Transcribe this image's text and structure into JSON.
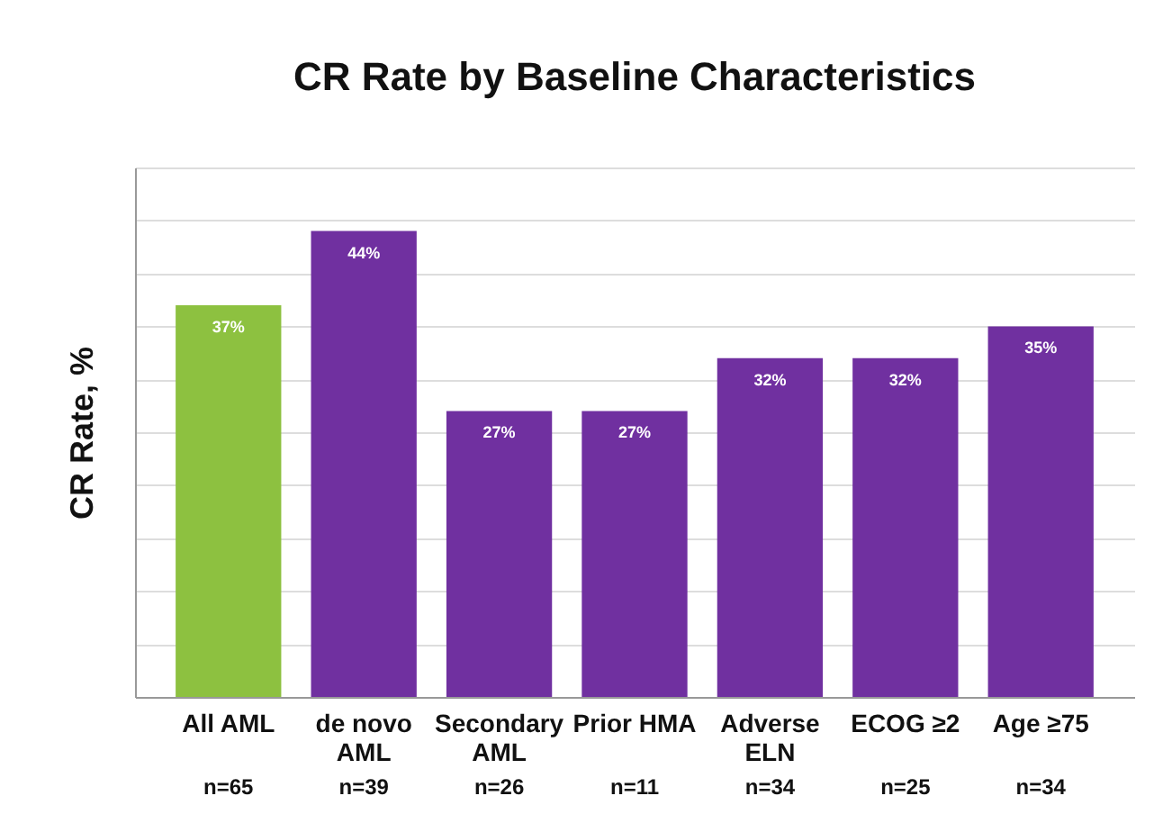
{
  "chart_data": {
    "type": "bar",
    "title": "CR Rate by Baseline Characteristics",
    "ylabel": "CR Rate, %",
    "categories": [
      "All AML",
      "de novo\nAML",
      "Secondary\nAML",
      "Prior HMA",
      "Adverse\nELN",
      "ECOG ≥2",
      "Age ≥75"
    ],
    "values": [
      37,
      44,
      27,
      27,
      32,
      32,
      35
    ],
    "colors": [
      "#8dc140",
      "#7030a0",
      "#7030a0",
      "#7030a0",
      "#7030a0",
      "#7030a0",
      "#7030a0"
    ],
    "value_labels": [
      "37%",
      "44%",
      "27%",
      "27%",
      "32%",
      "32%",
      "35%"
    ],
    "ylim": [
      0,
      50
    ],
    "yticks": [
      {
        "value": 0,
        "label": null
      },
      {
        "value": 5,
        "label": null
      },
      {
        "value": 10,
        "label": null
      },
      {
        "value": 15,
        "label": null
      },
      {
        "value": 20,
        "label": null
      },
      {
        "value": 25,
        "label": null
      },
      {
        "value": 30,
        "label": null
      },
      {
        "value": 35,
        "label": null
      },
      {
        "value": 40,
        "label": null
      },
      {
        "value": 45,
        "label": null
      },
      {
        "value": 50,
        "label": null
      }
    ],
    "grid": "y",
    "tick_labels": "x",
    "annotations": [
      "n=65",
      "n=39",
      "n=26",
      "n=11",
      "n=34",
      "n=25",
      "n=34"
    ]
  }
}
